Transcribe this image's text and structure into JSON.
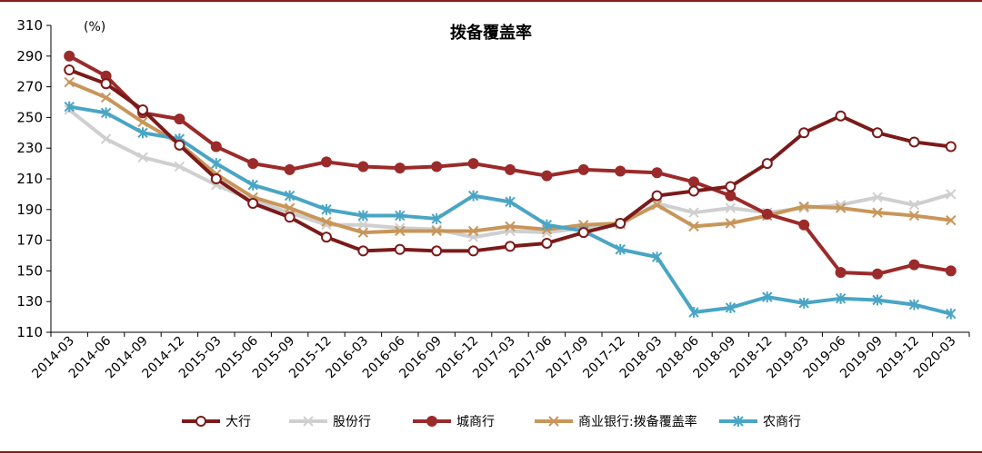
{
  "title": "拨备覆盖率",
  "unit_label": "(%)",
  "chart_data": {
    "type": "line",
    "title": "拨备覆盖率",
    "ylabel": "(%)",
    "xlabel": "",
    "ylim": [
      110,
      310
    ],
    "yticks": [
      110,
      130,
      150,
      170,
      190,
      210,
      230,
      250,
      270,
      290,
      310
    ],
    "grid": false,
    "legend_position": "bottom",
    "categories": [
      "2014-03",
      "2014-06",
      "2014-09",
      "2014-12",
      "2015-03",
      "2015-06",
      "2015-09",
      "2015-12",
      "2016-03",
      "2016-06",
      "2016-09",
      "2016-12",
      "2017-03",
      "2017-06",
      "2017-09",
      "2017-12",
      "2018-03",
      "2018-06",
      "2018-09",
      "2018-12",
      "2019-03",
      "2019-06",
      "2019-09",
      "2019-12",
      "2020-03"
    ],
    "series": [
      {
        "name": "大行",
        "color": "#7b1a1a",
        "marker": "circle-open",
        "values": [
          281,
          272,
          255,
          232,
          210,
          194,
          185,
          172,
          163,
          164,
          163,
          163,
          166,
          168,
          175,
          181,
          199,
          202,
          205,
          220,
          240,
          251,
          240,
          234,
          231
        ]
      },
      {
        "name": "股份行",
        "color": "#cfcfcf",
        "marker": "x",
        "values": [
          255,
          236,
          224,
          218,
          206,
          196,
          188,
          180,
          180,
          178,
          177,
          172,
          176,
          175,
          178,
          180,
          194,
          188,
          191,
          188,
          191,
          193,
          198,
          193,
          200
        ]
      },
      {
        "name": "城商行",
        "color": "#9b2a2a",
        "marker": "circle-filled",
        "values": [
          290,
          277,
          253,
          249,
          231,
          220,
          216,
          221,
          218,
          217,
          218,
          220,
          216,
          212,
          216,
          215,
          214,
          208,
          199,
          187,
          180,
          149,
          148,
          154,
          150
        ]
      },
      {
        "name": "商业银行:拨备覆盖率",
        "color": "#c8965a",
        "marker": "x",
        "values": [
          273,
          263,
          247,
          233,
          213,
          198,
          191,
          182,
          175,
          176,
          176,
          176,
          179,
          177,
          180,
          181,
          193,
          179,
          181,
          186,
          192,
          191,
          188,
          186,
          183
        ]
      },
      {
        "name": "农商行",
        "color": "#4aa5c4",
        "marker": "asterisk",
        "values": [
          257,
          253,
          240,
          236,
          220,
          206,
          199,
          190,
          186,
          186,
          184,
          199,
          195,
          180,
          176,
          164,
          159,
          123,
          126,
          133,
          129,
          132,
          131,
          128,
          122
        ]
      }
    ]
  }
}
